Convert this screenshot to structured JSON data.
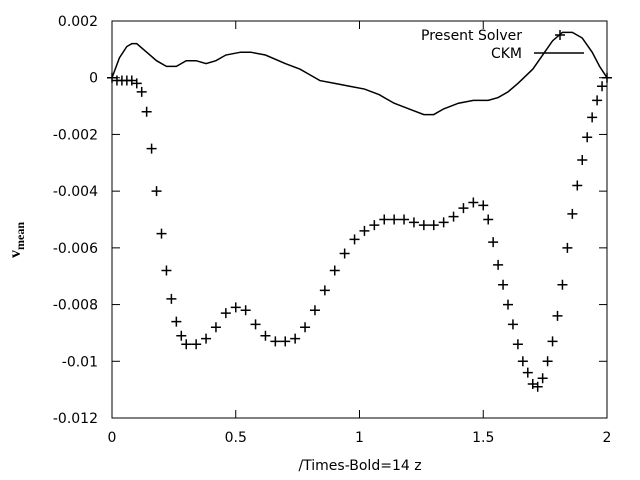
{
  "chart_data": {
    "type": "scatter-line",
    "x_label": "/Times-Bold=14 z",
    "y_label": "v",
    "y_label_subscript": "mean",
    "xlim": [
      0,
      2
    ],
    "xticks": [
      0,
      0.5,
      1,
      1.5,
      2
    ],
    "ylim": [
      -0.012,
      0.002
    ],
    "yticks": [
      0.002,
      0,
      -0.002,
      -0.004,
      -0.006,
      -0.008,
      -0.01,
      -0.012
    ],
    "legend": "top-right",
    "series": [
      {
        "name": "Present Solver",
        "color": "#000000",
        "style": "points",
        "x": [
          0,
          0.02,
          0.04,
          0.06,
          0.08,
          0.1,
          0.12,
          0.14,
          0.16,
          0.18,
          0.2,
          0.22,
          0.24,
          0.26,
          0.28,
          0.3,
          0.34,
          0.38,
          0.42,
          0.46,
          0.5,
          0.54,
          0.58,
          0.62,
          0.66,
          0.7,
          0.74,
          0.78,
          0.82,
          0.86,
          0.9,
          0.94,
          0.98,
          1.02,
          1.06,
          1.1,
          1.14,
          1.18,
          1.22,
          1.26,
          1.3,
          1.34,
          1.38,
          1.42,
          1.46,
          1.5,
          1.52,
          1.54,
          1.56,
          1.58,
          1.6,
          1.62,
          1.64,
          1.66,
          1.68,
          1.7,
          1.72,
          1.74,
          1.76,
          1.78,
          1.8,
          1.82,
          1.84,
          1.86,
          1.88,
          1.9,
          1.92,
          1.94,
          1.96,
          1.98,
          2.0
        ],
        "values": [
          0,
          -0.0001,
          -0.0001,
          -0.0001,
          -0.0001,
          -0.0002,
          -0.0005,
          -0.0012,
          -0.0025,
          -0.004,
          -0.0055,
          -0.0068,
          -0.0078,
          -0.0086,
          -0.0091,
          -0.0094,
          -0.0094,
          -0.0092,
          -0.0088,
          -0.0083,
          -0.0081,
          -0.0082,
          -0.0087,
          -0.0091,
          -0.0093,
          -0.0093,
          -0.0092,
          -0.0088,
          -0.0082,
          -0.0075,
          -0.0068,
          -0.0062,
          -0.0057,
          -0.0054,
          -0.0052,
          -0.005,
          -0.005,
          -0.005,
          -0.0051,
          -0.0052,
          -0.0052,
          -0.0051,
          -0.0049,
          -0.0046,
          -0.0044,
          -0.0045,
          -0.005,
          -0.0058,
          -0.0066,
          -0.0073,
          -0.008,
          -0.0087,
          -0.0094,
          -0.01,
          -0.0104,
          -0.0108,
          -0.0109,
          -0.0106,
          -0.01,
          -0.0093,
          -0.0084,
          -0.0073,
          -0.006,
          -0.0048,
          -0.0038,
          -0.0029,
          -0.0021,
          -0.0014,
          -0.0008,
          -0.0003,
          0
        ]
      },
      {
        "name": "CKM",
        "color": "#000000",
        "style": "line",
        "x": [
          0,
          0.03,
          0.06,
          0.08,
          0.1,
          0.14,
          0.18,
          0.22,
          0.26,
          0.3,
          0.34,
          0.38,
          0.42,
          0.46,
          0.52,
          0.56,
          0.62,
          0.7,
          0.76,
          0.8,
          0.84,
          0.9,
          0.96,
          1.02,
          1.08,
          1.14,
          1.2,
          1.26,
          1.3,
          1.34,
          1.4,
          1.46,
          1.52,
          1.56,
          1.6,
          1.64,
          1.7,
          1.74,
          1.78,
          1.82,
          1.86,
          1.9,
          1.94,
          1.97,
          2.0
        ],
        "values": [
          0,
          0.0007,
          0.0011,
          0.0012,
          0.0012,
          0.0009,
          0.0006,
          0.0004,
          0.0004,
          0.0006,
          0.0006,
          0.0005,
          0.0006,
          0.0008,
          0.0009,
          0.0009,
          0.0008,
          0.0005,
          0.0003,
          0.0001,
          -0.0001,
          -0.0002,
          -0.0003,
          -0.0004,
          -0.0006,
          -0.0009,
          -0.0011,
          -0.0013,
          -0.0013,
          -0.0011,
          -0.0009,
          -0.0008,
          -0.0008,
          -0.0007,
          -0.0005,
          -0.0002,
          0.0003,
          0.0008,
          0.0013,
          0.0016,
          0.0016,
          0.0014,
          0.0009,
          0.0004,
          0
        ]
      }
    ]
  }
}
